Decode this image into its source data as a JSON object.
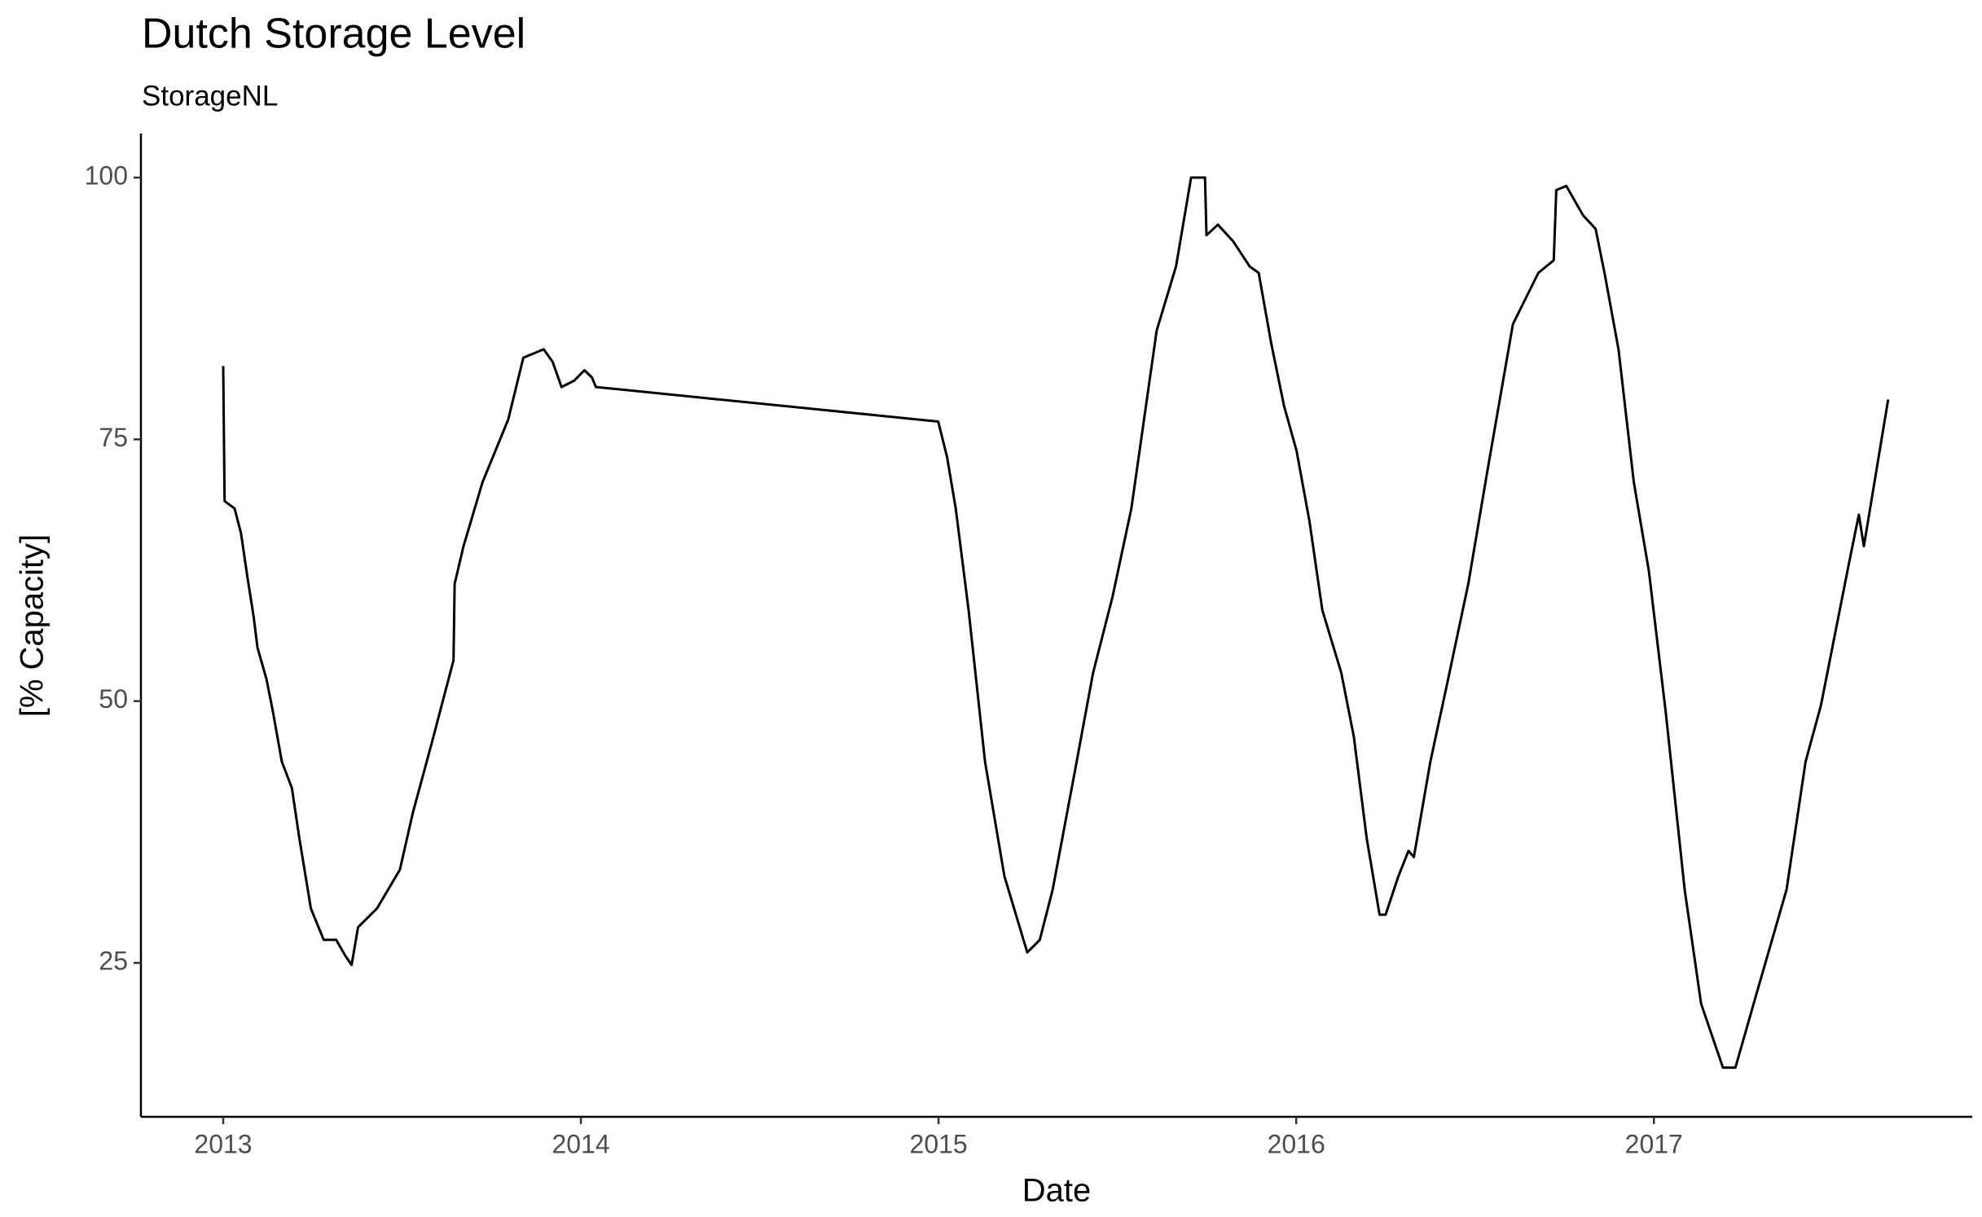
{
  "chart_data": {
    "type": "line",
    "title": "Dutch Storage Level",
    "subtitle": "StorageNL",
    "xlabel": "Date",
    "ylabel": "[% Capacity]",
    "color": "#000000",
    "x": [
      2013.0,
      2013.004,
      2013.032,
      2013.05,
      2013.068,
      2013.085,
      2013.096,
      2013.121,
      2013.139,
      2013.164,
      2013.192,
      2013.213,
      2013.245,
      2013.281,
      2013.316,
      2013.341,
      2013.359,
      2013.377,
      2013.43,
      2013.494,
      2013.53,
      2013.583,
      2013.644,
      2013.647,
      2013.672,
      2013.725,
      2013.797,
      2013.839,
      2013.896,
      2013.921,
      2013.946,
      2013.981,
      2014.01,
      2014.031,
      2014.042,
      2014.999,
      2015.024,
      2015.048,
      2015.084,
      2015.13,
      2015.184,
      2015.248,
      2015.283,
      2015.319,
      2015.379,
      2015.432,
      2015.486,
      2015.539,
      2015.61,
      2015.664,
      2015.706,
      2015.745,
      2015.749,
      2015.781,
      2015.824,
      2015.87,
      2015.895,
      2015.93,
      2015.966,
      2016.001,
      2016.037,
      2016.073,
      2016.126,
      2016.161,
      2016.197,
      2016.233,
      2016.25,
      2016.286,
      2016.314,
      2016.329,
      2016.375,
      2016.421,
      2016.481,
      2016.535,
      2016.606,
      2016.677,
      2016.72,
      2016.727,
      2016.755,
      2016.802,
      2016.837,
      2016.862,
      2016.901,
      2016.944,
      2016.986,
      2017.033,
      2017.086,
      2017.132,
      2017.193,
      2017.228,
      2017.289,
      2017.371,
      2017.424,
      2017.467,
      2017.548,
      2017.573,
      2017.587,
      2017.655
    ],
    "values": [
      82.0,
      69.1,
      68.4,
      66.0,
      61.8,
      58.1,
      55.1,
      52.1,
      49.0,
      44.2,
      41.7,
      36.9,
      30.2,
      27.2,
      27.2,
      25.7,
      24.8,
      28.4,
      30.2,
      33.9,
      39.3,
      46.0,
      53.9,
      61.2,
      64.8,
      70.9,
      76.9,
      82.8,
      83.6,
      82.4,
      80.0,
      80.6,
      81.6,
      80.9,
      80.0,
      76.7,
      73.3,
      68.4,
      58.7,
      44.2,
      33.3,
      26.0,
      27.2,
      32.0,
      42.9,
      52.7,
      59.9,
      68.4,
      85.4,
      91.5,
      100,
      100,
      94.5,
      95.5,
      93.9,
      91.5,
      90.9,
      84.2,
      78.2,
      73.9,
      67.2,
      58.7,
      52.7,
      46.6,
      36.9,
      29.6,
      29.6,
      33.3,
      35.7,
      35.1,
      44.2,
      51.5,
      61.2,
      72.1,
      86.0,
      90.9,
      92.1,
      98.8,
      99.2,
      96.4,
      95.1,
      90.9,
      83.6,
      70.9,
      62.4,
      49.0,
      32.0,
      21.1,
      15.0,
      15.0,
      22.3,
      32.0,
      44.2,
      49.6,
      63.6,
      67.8,
      64.8,
      78.8
    ],
    "xlim": [
      2012.77,
      2017.89
    ],
    "xticks": [
      2013,
      2014,
      2015,
      2016,
      2017
    ],
    "ylim": [
      10.3,
      104.2
    ],
    "yticks": [
      25,
      50,
      75,
      100
    ],
    "grid": false
  }
}
